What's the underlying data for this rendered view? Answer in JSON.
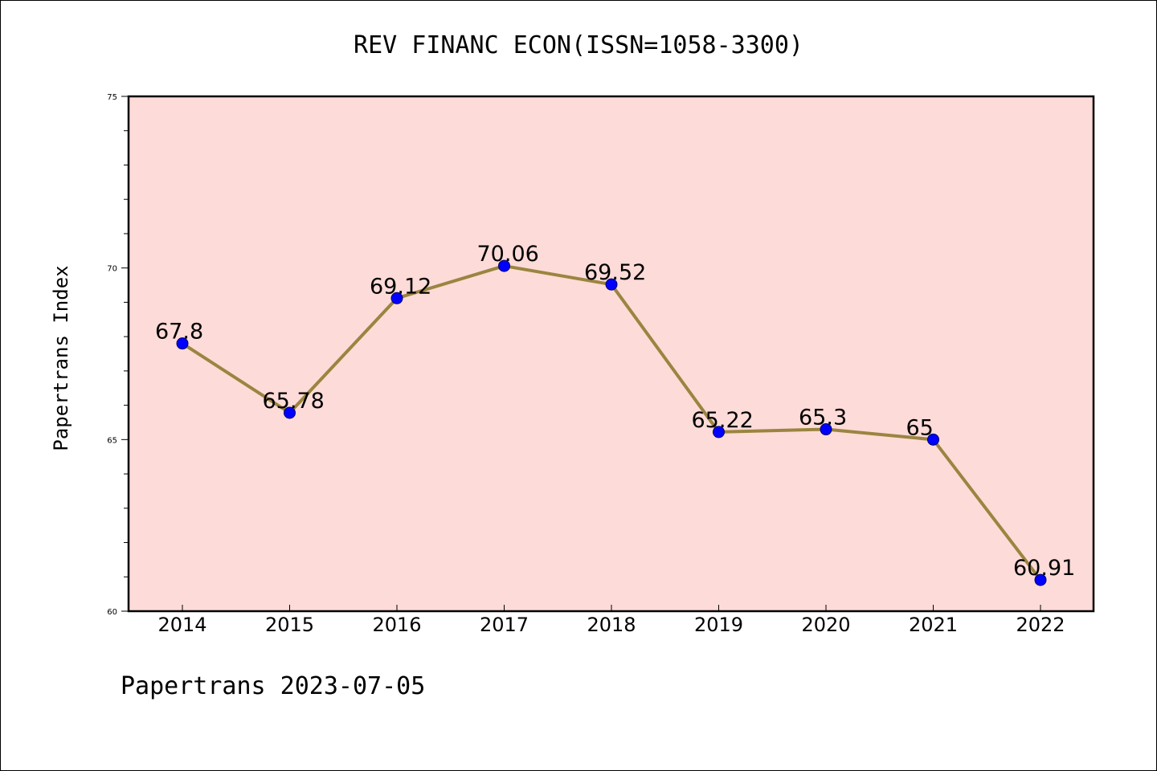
{
  "chart_data": {
    "type": "line",
    "title": "REV FINANC ECON(ISSN=1058-3300)",
    "xlabel": "",
    "ylabel": "Papertrans Index",
    "footer": "Papertrans 2023-07-05",
    "categories": [
      "2014",
      "2015",
      "2016",
      "2017",
      "2018",
      "2019",
      "2020",
      "2021",
      "2022"
    ],
    "values": [
      67.8,
      65.78,
      69.12,
      70.06,
      69.52,
      65.22,
      65.3,
      65,
      60.91
    ],
    "data_labels": [
      "67.8",
      "65.78",
      "69.12",
      "70.06",
      "69.52",
      "65.22",
      "65.3",
      "65",
      "60.91"
    ],
    "ylim": [
      60,
      75
    ],
    "yticks": [
      "60",
      "65",
      "70",
      "75"
    ],
    "grid": false,
    "colors": {
      "plot_background": "#fddbd8",
      "line": "#9a8540",
      "marker": "#0000ff"
    }
  }
}
